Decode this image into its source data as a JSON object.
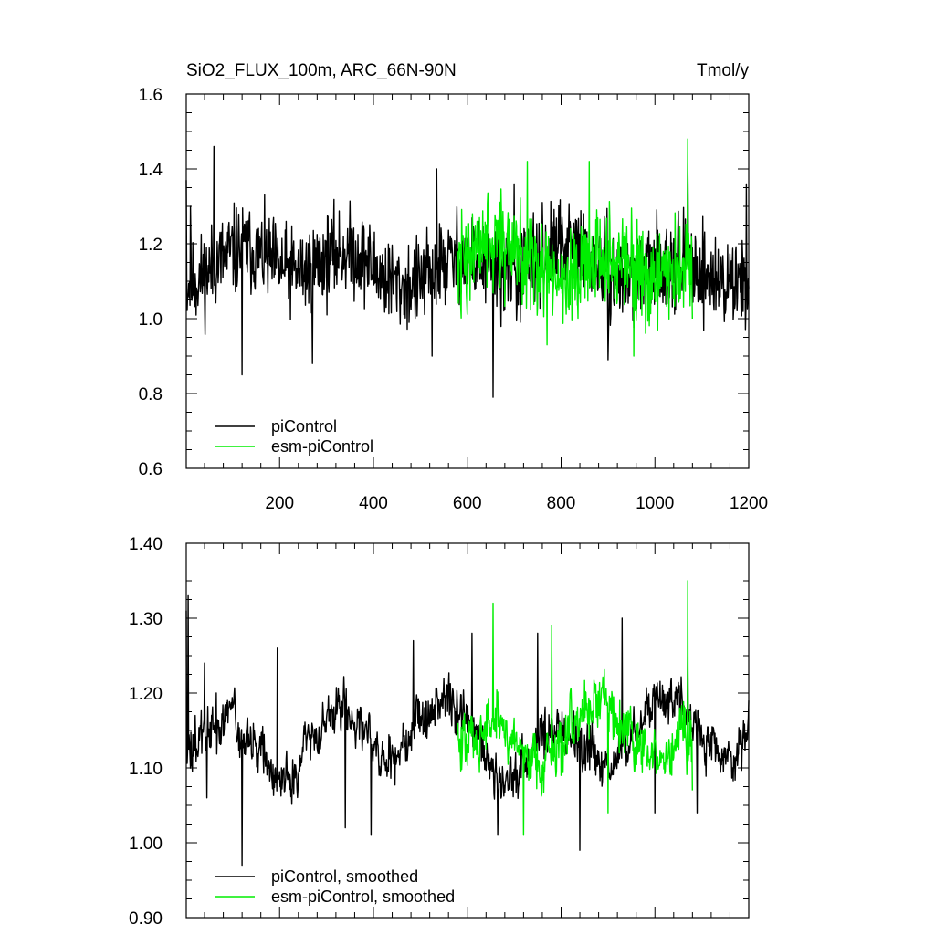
{
  "colors": {
    "piControl": "#000000",
    "esm": "#00ee00"
  },
  "chart_data": [
    {
      "type": "line",
      "title": "SiO2_FLUX_100m, ARC_66N-90N",
      "units": "Tmol/y",
      "xlim": [
        1,
        1200
      ],
      "ylim": [
        0.6,
        1.6
      ],
      "x_ticks": [
        200,
        400,
        600,
        800,
        1000,
        1200
      ],
      "x_tick_labels": [
        "200",
        "400",
        "600",
        "800",
        "1000",
        "1200"
      ],
      "y_ticks": [
        0.6,
        0.8,
        1.0,
        1.2,
        1.4,
        1.6
      ],
      "y_tick_labels": [
        "0.6",
        "0.8",
        "1.0",
        "1.2",
        "1.4",
        "1.6"
      ],
      "legend": [
        "piControl",
        "esm-piControl"
      ],
      "legend_position": "bottom-left",
      "series": [
        {
          "name": "piControl",
          "x_start": 1,
          "x_end": 1200,
          "mean": 1.14,
          "amplitude": 0.09,
          "anchors": [
            [
              1,
              1.37
            ],
            [
              10,
              1.3
            ],
            [
              60,
              1.46
            ],
            [
              120,
              0.85
            ],
            [
              270,
              0.88
            ],
            [
              525,
              0.9
            ],
            [
              535,
              1.4
            ],
            [
              655,
              0.79
            ],
            [
              700,
              1.36
            ],
            [
              900,
              0.89
            ],
            [
              1070,
              1.42
            ],
            [
              1195,
              1.36
            ]
          ]
        },
        {
          "name": "esm-piControl",
          "x_start": 580,
          "x_end": 1080,
          "mean": 1.15,
          "amplitude": 0.1,
          "anchors": [
            [
              580,
              1.18
            ],
            [
              728,
              1.42
            ],
            [
              770,
              0.93
            ],
            [
              860,
              1.42
            ],
            [
              955,
              0.9
            ],
            [
              1070,
              1.48
            ],
            [
              1080,
              1.0
            ]
          ]
        }
      ]
    },
    {
      "type": "line",
      "title": "",
      "xlim": [
        1,
        1200
      ],
      "ylim": [
        0.9,
        1.4
      ],
      "x_ticks": [
        200,
        400,
        600,
        800,
        1000,
        1200
      ],
      "y_ticks": [
        0.9,
        1.0,
        1.1,
        1.2,
        1.3,
        1.4
      ],
      "y_tick_labels": [
        "0.90",
        "1.00",
        "1.10",
        "1.20",
        "1.30",
        "1.40"
      ],
      "legend": [
        "piControl, smoothed",
        "esm-piControl, smoothed"
      ],
      "legend_position": "bottom-left",
      "series": [
        {
          "name": "piControl, smoothed",
          "x_start": 1,
          "x_end": 1200,
          "mean": 1.14,
          "amplitude": 0.045,
          "anchors": [
            [
              1,
              1.31
            ],
            [
              5,
              1.33
            ],
            [
              20,
              1.17
            ],
            [
              40,
              1.24
            ],
            [
              45,
              1.06
            ],
            [
              65,
              1.2
            ],
            [
              120,
              0.97
            ],
            [
              195,
              1.26
            ],
            [
              340,
              1.02
            ],
            [
              395,
              1.01
            ],
            [
              485,
              1.27
            ],
            [
              610,
              1.28
            ],
            [
              665,
              1.01
            ],
            [
              750,
              1.28
            ],
            [
              840,
              0.99
            ],
            [
              930,
              1.3
            ],
            [
              1000,
              1.04
            ],
            [
              1070,
              1.25
            ],
            [
              1090,
              1.04
            ],
            [
              1200,
              1.19
            ]
          ]
        },
        {
          "name": "esm-piControl, smoothed",
          "x_start": 580,
          "x_end": 1080,
          "mean": 1.14,
          "amplitude": 0.055,
          "anchors": [
            [
              580,
              1.16
            ],
            [
              655,
              1.32
            ],
            [
              720,
              1.01
            ],
            [
              780,
              1.29
            ],
            [
              800,
              1.09
            ],
            [
              900,
              1.04
            ],
            [
              960,
              1.13
            ],
            [
              1070,
              1.35
            ],
            [
              1080,
              1.07
            ]
          ]
        }
      ]
    }
  ]
}
